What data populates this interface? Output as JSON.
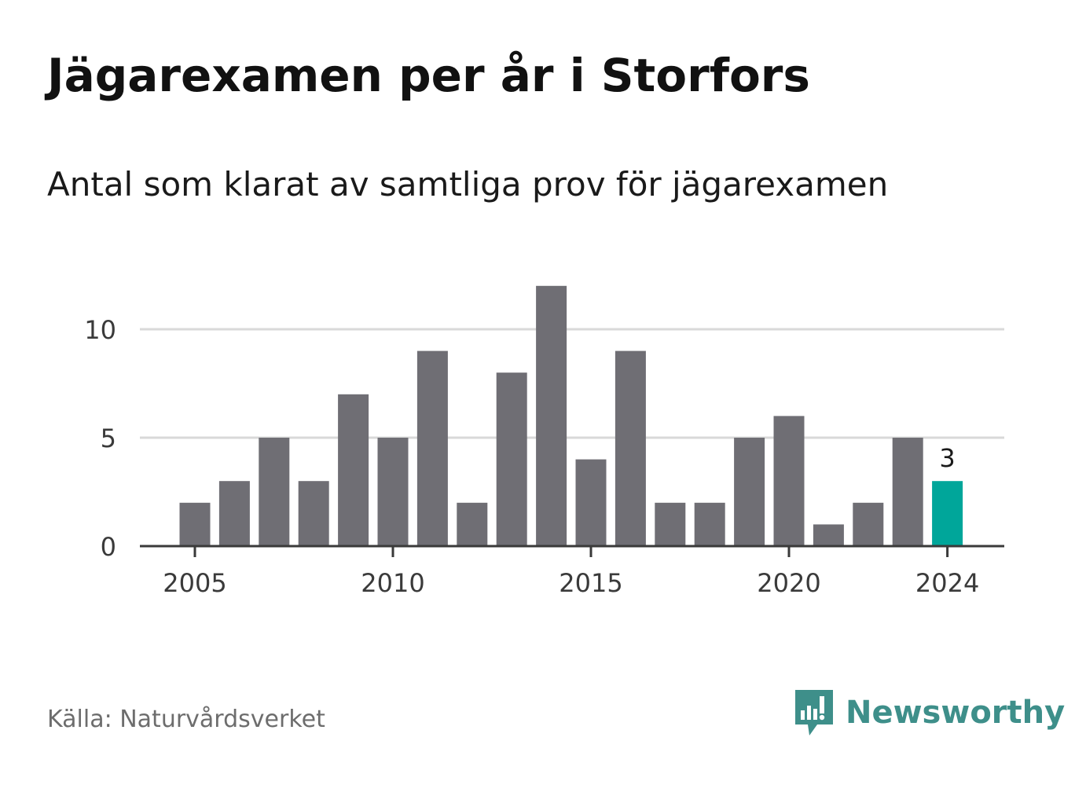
{
  "header": {
    "title": "Jägarexamen per år i Storfors",
    "subtitle": "Antal som klarat av samtliga prov för jägarexamen"
  },
  "footer": {
    "source": "Källa: Naturvårdsverket",
    "brand": "Newsworthy"
  },
  "colors": {
    "bar": "#6f6e74",
    "highlight": "#00a69a",
    "grid": "#d9d9d9",
    "axis": "#3a3a3a",
    "brand": "#3e8f8a"
  },
  "chart_data": {
    "type": "bar",
    "x": [
      2005,
      2006,
      2007,
      2008,
      2009,
      2010,
      2011,
      2012,
      2013,
      2014,
      2015,
      2016,
      2017,
      2018,
      2019,
      2020,
      2021,
      2022,
      2023,
      2024
    ],
    "values": [
      2,
      3,
      5,
      3,
      7,
      5,
      9,
      2,
      8,
      12,
      4,
      9,
      2,
      2,
      5,
      6,
      1,
      2,
      5,
      3
    ],
    "x_ticks": [
      "2005",
      "2010",
      "2015",
      "2020",
      "2024"
    ],
    "y_ticks": [
      "0",
      "5",
      "10"
    ],
    "ylim": [
      0,
      13
    ],
    "grid": true,
    "highlight": {
      "x": 2024,
      "label": "3"
    }
  }
}
